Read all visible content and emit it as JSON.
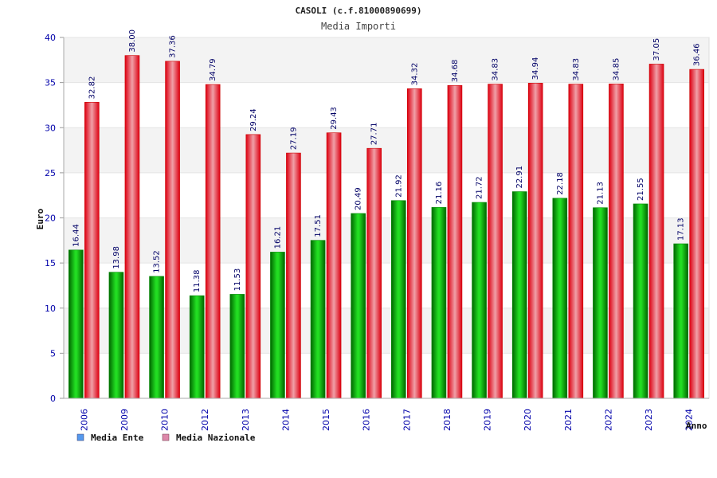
{
  "chart_data": {
    "type": "bar",
    "title": "CASOLI (c.f.81000890699)",
    "subtitle": "Media Importi",
    "ylabel": "Euro",
    "xlabel": "Anno",
    "ylim": [
      0,
      40
    ],
    "yticks": [
      0,
      5,
      10,
      15,
      20,
      25,
      30,
      35,
      40
    ],
    "categories": [
      "2006",
      "2009",
      "2010",
      "2012",
      "2013",
      "2014",
      "2015",
      "2016",
      "2017",
      "2018",
      "2019",
      "2020",
      "2021",
      "2022",
      "2023",
      "2024"
    ],
    "series": [
      {
        "name": "Media Ente",
        "color": "#00bb00",
        "legend_color": "#5599ee",
        "values": [
          16.44,
          13.98,
          13.52,
          11.38,
          11.53,
          16.21,
          17.51,
          20.49,
          21.92,
          21.16,
          21.72,
          22.91,
          22.18,
          21.13,
          21.55,
          17.13
        ],
        "labels": [
          "16.44",
          "13.98",
          "13.52",
          "11.38",
          "11.53",
          "16.21",
          "17.51",
          "20.49",
          "21.92",
          "21.16",
          "21.72",
          "22.91",
          "22.18",
          "21.13",
          "21.55",
          "17.13"
        ]
      },
      {
        "name": "Media Nazionale",
        "color": "#ee1122",
        "legend_color": "#dd88aa",
        "values": [
          32.82,
          38.0,
          37.36,
          34.79,
          29.24,
          27.19,
          29.43,
          27.71,
          34.32,
          34.68,
          34.83,
          34.94,
          34.83,
          34.85,
          37.05,
          36.46
        ],
        "labels": [
          "32.82",
          "38.00",
          "37.36",
          "34.79",
          "29.24",
          "27.19",
          "29.43",
          "27.71",
          "34.32",
          "34.68",
          "34.83",
          "34.94",
          "34.83",
          "34.85",
          "37.05",
          "36.46"
        ]
      }
    ],
    "grid": true,
    "legend_position": "bottom-left"
  }
}
